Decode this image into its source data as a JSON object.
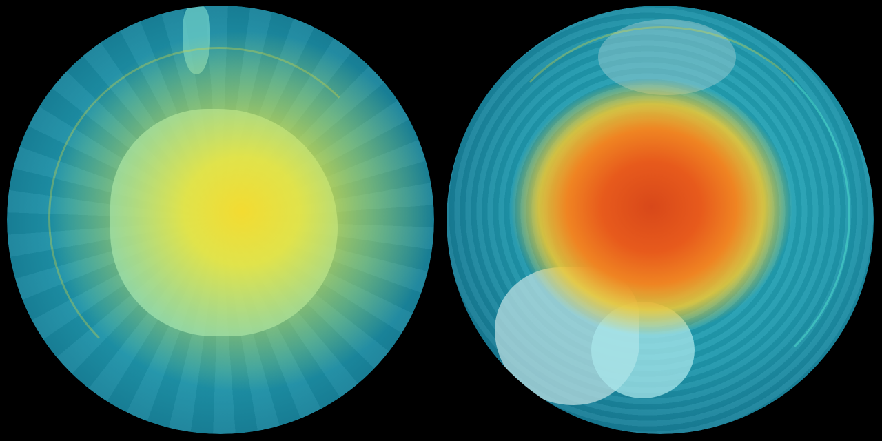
{
  "figure": {
    "panels": [
      {
        "id": "left-globe",
        "view": "south-polar",
        "hotspot_color": "#f5e22a",
        "ocean_color": "#1a8fa8",
        "land_color": "#7fe3e6"
      },
      {
        "id": "right-globe",
        "view": "oblique",
        "hotspot_color": "#e0521a",
        "ocean_color": "#1a8fa8",
        "land_color": "#b9dde0"
      }
    ],
    "background": "#000000"
  }
}
